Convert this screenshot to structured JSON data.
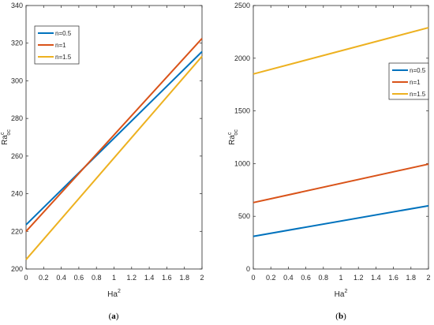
{
  "charts": [
    {
      "id": "a",
      "type": "line",
      "caption_letter": "a",
      "xlabel_base": "Ha",
      "xlabel_sup": "2",
      "ylabel_base": "Ra",
      "ylabel_sup": "c",
      "ylabel_sub": "oc",
      "xlim": [
        0,
        2
      ],
      "ylim": [
        200,
        340
      ],
      "xticks": [
        "0",
        "0.2",
        "0.4",
        "0.6",
        "0.8",
        "1",
        "1.2",
        "1.4",
        "1.6",
        "1.8",
        "2"
      ],
      "yticks": [
        "200",
        "220",
        "240",
        "260",
        "280",
        "300",
        "320",
        "340"
      ],
      "legend_position": "top-left",
      "series": [
        {
          "name": "n=0.5",
          "color": "#0072BD",
          "x": [
            0,
            2
          ],
          "y": [
            223.5,
            315.5
          ]
        },
        {
          "name": "n=1",
          "color": "#D95319",
          "x": [
            0,
            2
          ],
          "y": [
            220,
            322.5
          ]
        },
        {
          "name": "n=1.5",
          "color": "#EDB120",
          "x": [
            0,
            2
          ],
          "y": [
            205,
            313
          ]
        }
      ]
    },
    {
      "id": "b",
      "type": "line",
      "caption_letter": "b",
      "xlabel_base": "Ha",
      "xlabel_sup": "2",
      "ylabel_base": "Ra",
      "ylabel_sup": "c",
      "ylabel_sub": "oc",
      "xlim": [
        0,
        2
      ],
      "ylim": [
        0,
        2500
      ],
      "xticks": [
        "0",
        "0.2",
        "0.4",
        "0.6",
        "0.8",
        "1",
        "1.2",
        "1.4",
        "1.6",
        "1.8",
        "2"
      ],
      "yticks": [
        "0",
        "500",
        "1000",
        "1500",
        "2000",
        "2500"
      ],
      "legend_position": "right",
      "series": [
        {
          "name": "n=0.5",
          "color": "#0072BD",
          "x": [
            0,
            2
          ],
          "y": [
            310,
            600
          ]
        },
        {
          "name": "n=1",
          "color": "#D95319",
          "x": [
            0,
            2
          ],
          "y": [
            630,
            995
          ]
        },
        {
          "name": "n=1.5",
          "color": "#EDB120",
          "x": [
            0,
            2
          ],
          "y": [
            1850,
            2290
          ]
        }
      ]
    }
  ]
}
